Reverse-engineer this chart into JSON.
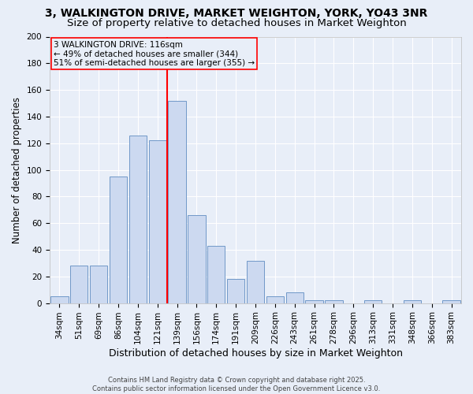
{
  "title1": "3, WALKINGTON DRIVE, MARKET WEIGHTON, YORK, YO43 3NR",
  "title2": "Size of property relative to detached houses in Market Weighton",
  "xlabel": "Distribution of detached houses by size in Market Weighton",
  "ylabel": "Number of detached properties",
  "categories": [
    "34sqm",
    "51sqm",
    "69sqm",
    "86sqm",
    "104sqm",
    "121sqm",
    "139sqm",
    "156sqm",
    "174sqm",
    "191sqm",
    "209sqm",
    "226sqm",
    "243sqm",
    "261sqm",
    "278sqm",
    "296sqm",
    "313sqm",
    "331sqm",
    "348sqm",
    "366sqm",
    "383sqm"
  ],
  "values": [
    5,
    28,
    28,
    95,
    126,
    122,
    152,
    66,
    43,
    18,
    32,
    5,
    8,
    2,
    2,
    0,
    2,
    0,
    2,
    0,
    2
  ],
  "bar_color": "#ccd9f0",
  "bar_edge_color": "#7098c8",
  "red_line_x": 5.5,
  "annotation_title": "3 WALKINGTON DRIVE: 116sqm",
  "annotation_line1": "← 49% of detached houses are smaller (344)",
  "annotation_line2": "51% of semi-detached houses are larger (355) →",
  "footer1": "Contains HM Land Registry data © Crown copyright and database right 2025.",
  "footer2": "Contains public sector information licensed under the Open Government Licence v3.0.",
  "ylim": [
    0,
    200
  ],
  "yticks": [
    0,
    20,
    40,
    60,
    80,
    100,
    120,
    140,
    160,
    180,
    200
  ],
  "bg_color": "#e8eef8",
  "grid_color": "#ffffff",
  "title1_fontsize": 10,
  "title2_fontsize": 9.5,
  "ylabel_fontsize": 8.5,
  "xlabel_fontsize": 9,
  "tick_fontsize": 7.5,
  "footer_fontsize": 6,
  "ann_fontsize": 7.5
}
